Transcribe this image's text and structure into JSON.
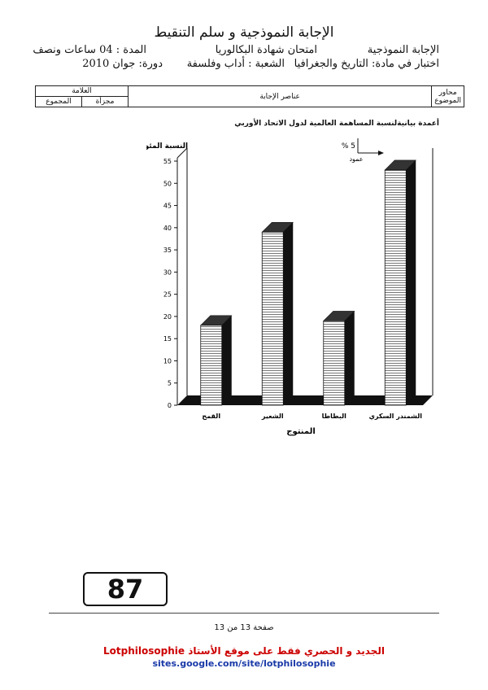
{
  "header": {
    "title": "الإجابة النموذجية و سلم التنقيط",
    "answer_label": "الإجابة النموذجية",
    "exam": "امتحان شهادة البكالوريا",
    "duration": "المدة : 04 ساعات ونصف",
    "subject": "اختبار في مادة: التاريخ والجغرافيا",
    "branch": "الشعبة : أداب وفلسفة",
    "session": "دورة: جوان 2010"
  },
  "table": {
    "axes": "محاور الموضوع",
    "elements": "عناصر الإجابة",
    "mark": "العلامة",
    "partial": "مجزأة",
    "total": "المجموع"
  },
  "chart_data": {
    "type": "bar",
    "title": "أعمدة بيانيةلنسبة المساهمة العالمية لدول الاتحاد الأوربي",
    "ylabel": "النسبة المئوية",
    "xlabel": "المنتوج",
    "legend_scale": "% 5",
    "legend_axis": "عمود",
    "categories": [
      "القمح",
      "الشعير",
      "البطاطا",
      "الشمندر السكري"
    ],
    "values": [
      18,
      39,
      19,
      53
    ],
    "yticks": [
      0,
      5,
      10,
      15,
      20,
      25,
      30,
      35,
      40,
      45,
      50,
      55
    ],
    "ylim": [
      0,
      55
    ]
  },
  "stamp": "87",
  "page": "صفحة 13 من 13",
  "footer": {
    "line": "الجديد و الحصري فقط على موقع الأستاذ Lotphilosophie",
    "url": "sites.google.com/site/lotphilosophie"
  }
}
